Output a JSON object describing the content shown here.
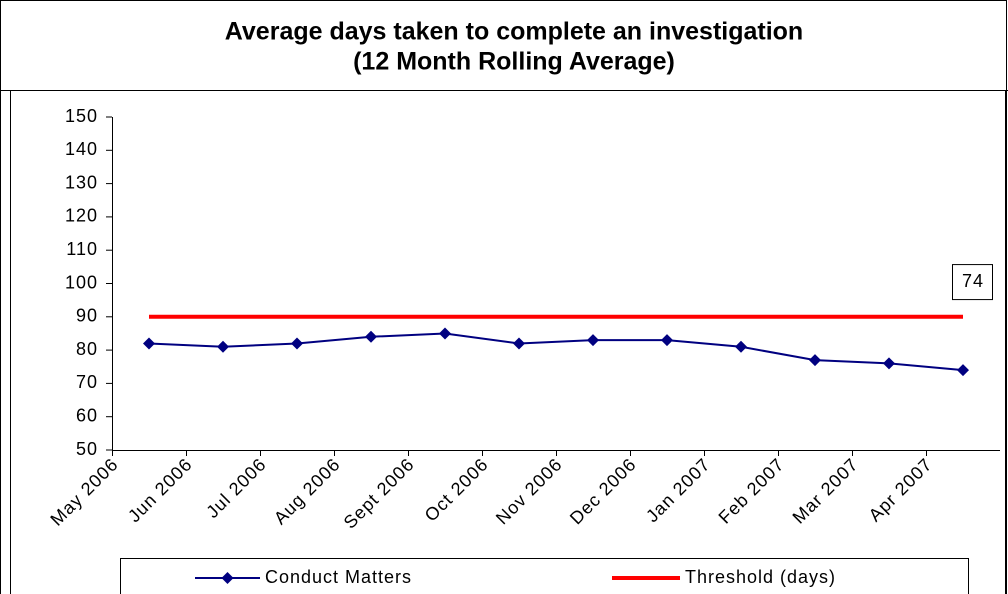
{
  "chart_data": {
    "type": "line",
    "title": "Average days taken to complete an investigation",
    "subtitle": "(12 Month Rolling Average)",
    "categories": [
      "May 2006",
      "Jun 2006",
      "Jul 2006",
      "Aug 2006",
      "Sept 2006",
      "Oct 2006",
      "Nov 2006",
      "Dec 2006",
      "Jan 2007",
      "Feb 2007",
      "Mar 2007",
      "Apr 2007"
    ],
    "series": [
      {
        "name": "Conduct Matters",
        "color": "#000080",
        "marker": "diamond",
        "values": [
          82,
          81,
          82,
          84,
          85,
          82,
          83,
          83,
          81,
          77,
          76,
          74
        ]
      },
      {
        "name": "Threshold (days)",
        "color": "#ff0000",
        "values": [
          90,
          90,
          90,
          90,
          90,
          90,
          90,
          90,
          90,
          90,
          90,
          90
        ]
      }
    ],
    "ylim": [
      50,
      150
    ],
    "yticks": [
      50,
      60,
      70,
      80,
      90,
      100,
      110,
      120,
      130,
      140,
      150
    ],
    "legend": "bottom"
  }
}
